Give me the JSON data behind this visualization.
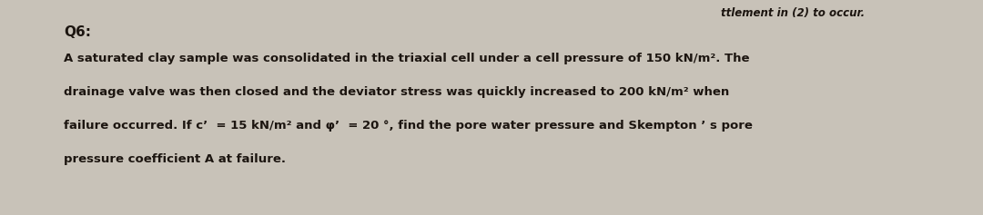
{
  "bg_color": "#c8c2b8",
  "top_text": "ttlement in (2) to occur.",
  "question_label": "Q6:",
  "question_text_lines": [
    "A saturated clay sample was consolidated in the triaxial cell under a cell pressure of 150 kN/m². The",
    "drainage valve was then closed and the deviator stress was quickly increased to 200 kN/m² when",
    "failure occurred. If c’  = 15 kN/m² and φ’  = 20 °, find the pore water pressure and Skempton ’ s pore",
    "pressure coefficient A at failure."
  ],
  "font_size_top": 8.5,
  "font_size_q_label": 11,
  "font_size_body": 9.5,
  "text_color": "#1c1510",
  "fig_width": 10.8,
  "fig_height": 2.37,
  "dpi": 100
}
